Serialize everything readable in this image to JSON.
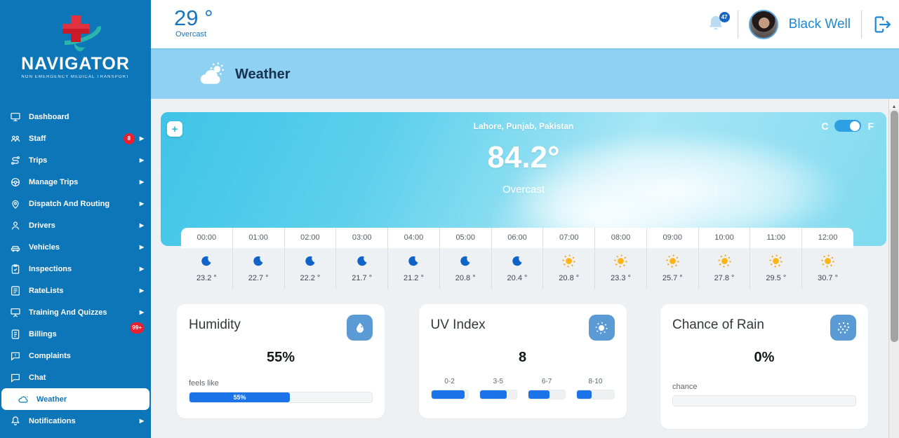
{
  "colors": {
    "sidebar_blue": "#0d76b8",
    "accent_blue": "#1a73e8",
    "badge_red": "#e81f30",
    "banner_blue": "#8ed1f3",
    "link_blue": "#1e88d2",
    "hero_cyan": "#3fc4e7",
    "icon_square_blue": "#5b9bd5",
    "sun_orange": "#f59e0b",
    "moon_blue": "#1064c8"
  },
  "sidebar": {
    "logo_title": "NAVIGATOR",
    "logo_tagline": "NON EMERGENCY MEDICAL TRANSPORT",
    "items": [
      {
        "label": "Dashboard"
      },
      {
        "label": "Staff",
        "badge": "8"
      },
      {
        "label": "Trips"
      },
      {
        "label": "Manage Trips"
      },
      {
        "label": "Dispatch And Routing"
      },
      {
        "label": "Drivers"
      },
      {
        "label": "Vehicles"
      },
      {
        "label": "Inspections"
      },
      {
        "label": "RateLists"
      },
      {
        "label": "Training And Quizzes"
      },
      {
        "label": "Billings",
        "badge": "99+"
      },
      {
        "label": "Complaints"
      },
      {
        "label": "Chat"
      },
      {
        "label": "Weather"
      },
      {
        "label": "Notifications"
      }
    ]
  },
  "topbar": {
    "temperature": "29 °",
    "condition": "Overcast",
    "notification_count": "47",
    "user_name": "Black Well"
  },
  "page_header": {
    "title": "Weather"
  },
  "hero": {
    "location": "Lahore, Punjab, Pakistan",
    "temperature": "84.2°",
    "condition": "Overcast",
    "celsius_label": "C",
    "fahrenheit_label": "F",
    "add_button_label": "+"
  },
  "hourly": [
    {
      "time": "00:00",
      "icon": "moon",
      "temp": "23.2 °"
    },
    {
      "time": "01:00",
      "icon": "moon",
      "temp": "22.7 °"
    },
    {
      "time": "02:00",
      "icon": "moon",
      "temp": "22.2 °"
    },
    {
      "time": "03:00",
      "icon": "moon",
      "temp": "21.7 °"
    },
    {
      "time": "04:00",
      "icon": "moon",
      "temp": "21.2 °"
    },
    {
      "time": "05:00",
      "icon": "moon",
      "temp": "20.8 °"
    },
    {
      "time": "06:00",
      "icon": "moon",
      "temp": "20.4 °"
    },
    {
      "time": "07:00",
      "icon": "sun",
      "temp": "20.8 °"
    },
    {
      "time": "08:00",
      "icon": "sun",
      "temp": "23.3 °"
    },
    {
      "time": "09:00",
      "icon": "sun",
      "temp": "25.7 °"
    },
    {
      "time": "10:00",
      "icon": "sun",
      "temp": "27.8 °"
    },
    {
      "time": "11:00",
      "icon": "sun",
      "temp": "29.5 °"
    },
    {
      "time": "12:00",
      "icon": "sun",
      "temp": "30.7 °"
    }
  ],
  "humidity_card": {
    "title": "Humidity",
    "value": "55%",
    "sub_label": "feels like",
    "bar_label": "55%",
    "bar_percent": 55
  },
  "uv_card": {
    "title": "UV Index",
    "value": "8",
    "ranges": [
      {
        "label": "0-2",
        "percent": 90
      },
      {
        "label": "3-5",
        "percent": 73
      },
      {
        "label": "6-7",
        "percent": 57
      },
      {
        "label": "8-10",
        "percent": 40
      }
    ]
  },
  "rain_card": {
    "title": "Chance of Rain",
    "value": "0%",
    "sub_label": "chance",
    "bar_percent": 0
  }
}
